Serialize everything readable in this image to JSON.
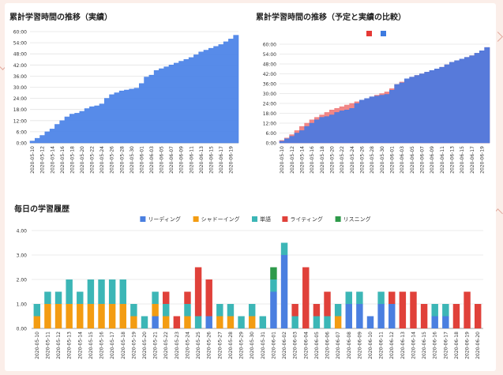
{
  "chart_data": [
    {
      "type": "area",
      "title": "累計学習時間の推移（実績）",
      "x": [
        "2020-05-10",
        "2020-05-11",
        "2020-05-12",
        "2020-05-13",
        "2020-05-14",
        "2020-05-15",
        "2020-05-16",
        "2020-05-17",
        "2020-05-18",
        "2020-05-19",
        "2020-05-20",
        "2020-05-21",
        "2020-05-22",
        "2020-05-23",
        "2020-05-24",
        "2020-05-25",
        "2020-05-26",
        "2020-05-27",
        "2020-05-28",
        "2020-05-29",
        "2020-05-30",
        "2020-05-31",
        "2020-06-01",
        "2020-06-02",
        "2020-06-03",
        "2020-06-04",
        "2020-06-05",
        "2020-06-06",
        "2020-06-07",
        "2020-06-08",
        "2020-06-09",
        "2020-06-10",
        "2020-06-11",
        "2020-06-12",
        "2020-06-13",
        "2020-06-14",
        "2020-06-15",
        "2020-06-16",
        "2020-06-17",
        "2020-06-18",
        "2020-06-19",
        "2020-06-20"
      ],
      "xticks": [
        "2020-05-10",
        "2020-05-12",
        "2020-05-14",
        "2020-05-16",
        "2020-05-18",
        "2020-05-20",
        "2020-05-22",
        "2020-05-24",
        "2020-05-26",
        "2020-05-28",
        "2020-05-30",
        "2020-06-01",
        "2020-06-03",
        "2020-06-05",
        "2020-06-07",
        "2020-06-09",
        "2020-06-11",
        "2020-06-13",
        "2020-06-15",
        "2020-06-17",
        "2020-06-19"
      ],
      "yticks": [
        "0:00",
        "6:00",
        "12:00",
        "18:00",
        "24:00",
        "30:00",
        "36:00",
        "42:00",
        "48:00",
        "54:00",
        "60:00"
      ],
      "ylim": [
        0,
        60
      ],
      "series": [
        {
          "values": [
            1,
            2.5,
            4,
            6,
            7.5,
            10,
            12,
            14,
            15.5,
            16,
            17,
            18.5,
            19.5,
            20,
            21,
            24,
            26,
            27,
            28,
            28.5,
            29,
            29.5,
            32,
            35.5,
            36.5,
            39,
            40,
            41,
            42,
            43,
            44,
            45,
            46,
            47.5,
            49,
            50,
            51,
            52,
            53,
            54.5,
            56,
            58
          ]
        }
      ],
      "colors": [
        "#4e85e8"
      ],
      "grid": true
    },
    {
      "type": "area",
      "title": "累計学習時間の推移（予定と実績の比較）",
      "x": [
        "2020-05-10",
        "2020-05-11",
        "2020-05-12",
        "2020-05-13",
        "2020-05-14",
        "2020-05-15",
        "2020-05-16",
        "2020-05-17",
        "2020-05-18",
        "2020-05-19",
        "2020-05-20",
        "2020-05-21",
        "2020-05-22",
        "2020-05-23",
        "2020-05-24",
        "2020-05-25",
        "2020-05-26",
        "2020-05-27",
        "2020-05-28",
        "2020-05-29",
        "2020-05-30",
        "2020-05-31",
        "2020-06-01",
        "2020-06-02",
        "2020-06-03",
        "2020-06-04",
        "2020-06-05",
        "2020-06-06",
        "2020-06-07",
        "2020-06-08",
        "2020-06-09",
        "2020-06-10",
        "2020-06-11",
        "2020-06-12",
        "2020-06-13",
        "2020-06-14",
        "2020-06-15",
        "2020-06-16",
        "2020-06-17",
        "2020-06-18",
        "2020-06-19",
        "2020-06-20"
      ],
      "xticks": [
        "2020-05-10",
        "2020-05-12",
        "2020-05-14",
        "2020-05-16",
        "2020-05-18",
        "2020-05-20",
        "2020-05-22",
        "2020-05-24",
        "2020-05-26",
        "2020-05-28",
        "2020-05-30",
        "2020-06-01",
        "2020-06-03",
        "2020-06-05",
        "2020-06-07",
        "2020-06-09",
        "2020-06-11",
        "2020-06-13",
        "2020-06-15",
        "2020-06-17",
        "2020-06-19"
      ],
      "yticks": [
        "0:00",
        "6:00",
        "12:00",
        "18:00",
        "24:00",
        "30:00",
        "36:00",
        "42:00",
        "48:00",
        "54:00",
        "60:00"
      ],
      "ylim": [
        0,
        60
      ],
      "legend": {
        "position": "top"
      },
      "series": [
        {
          "values": [
            1.5,
            3,
            5,
            7.5,
            10,
            12,
            14,
            15.5,
            17,
            18.5,
            20,
            21,
            22,
            23,
            24,
            25,
            26,
            27,
            28,
            29,
            30,
            31,
            33,
            35.5,
            37,
            38.5,
            40,
            41,
            42,
            43,
            44,
            45,
            46,
            47.5,
            49,
            50,
            51,
            52,
            53,
            54.5,
            56,
            58
          ]
        },
        {
          "values": [
            1,
            2.5,
            4,
            6,
            7.5,
            10,
            12,
            14,
            15.5,
            16,
            17,
            18.5,
            19.5,
            20,
            21,
            24,
            26,
            27,
            28,
            28.5,
            29,
            29.5,
            32,
            35.5,
            36.5,
            39,
            40,
            41,
            42,
            43,
            44,
            45,
            46,
            47.5,
            49,
            50,
            51,
            52,
            53,
            54.5,
            56,
            58
          ]
        }
      ],
      "colors": [
        "#f08080",
        "#4e79de"
      ],
      "legend_colors": [
        "#e53935",
        "#3d7be0"
      ],
      "grid": true
    },
    {
      "type": "bar",
      "stacked": true,
      "title": "毎日の学習履歴",
      "categories": [
        "2020-05-10",
        "2020-05-11",
        "2020-05-12",
        "2020-05-13",
        "2020-05-14",
        "2020-05-15",
        "2020-05-16",
        "2020-05-17",
        "2020-05-18",
        "2020-05-19",
        "2020-05-20",
        "2020-05-21",
        "2020-05-22",
        "2020-05-23",
        "2020-05-24",
        "2020-05-25",
        "2020-05-26",
        "2020-05-27",
        "2020-05-28",
        "2020-05-29",
        "2020-05-30",
        "2020-05-31",
        "2020-06-01",
        "2020-06-02",
        "2020-06-03",
        "2020-06-04",
        "2020-06-05",
        "2020-06-06",
        "2020-06-07",
        "2020-06-08",
        "2020-06-09",
        "2020-06-10",
        "2020-06-11",
        "2020-06-12",
        "2020-06-13",
        "2020-06-14",
        "2020-06-15",
        "2020-06-16",
        "2020-06-17",
        "2020-06-18",
        "2020-06-19",
        "2020-06-20"
      ],
      "yticks": [
        "0.00",
        "1.00",
        "2.00",
        "3.00",
        "4.00"
      ],
      "ylim": [
        0,
        4
      ],
      "legend": {
        "position": "top"
      },
      "series": [
        {
          "name": "リーディング",
          "color": "#4a7fe0",
          "values": [
            0,
            0,
            0,
            0,
            0,
            0,
            0,
            0,
            0,
            0,
            0,
            0.5,
            0,
            0,
            0,
            0,
            0.5,
            0,
            0,
            0,
            0,
            0,
            1.5,
            3.0,
            0,
            0,
            0,
            0,
            0,
            1.0,
            1.0,
            0.5,
            1.0,
            1.0,
            0,
            0,
            0,
            0.5,
            0.5,
            0,
            0,
            0
          ]
        },
        {
          "name": "シャドーイング",
          "color": "#f39c12",
          "values": [
            0.5,
            1.0,
            1.0,
            1.0,
            1.0,
            1.0,
            1.0,
            1.0,
            1.0,
            0.5,
            0,
            0.5,
            0.5,
            0,
            0.5,
            0,
            0,
            0.5,
            0.5,
            0,
            0.5,
            0,
            0,
            0,
            0,
            0,
            0,
            0,
            0.5,
            0,
            0,
            0,
            0,
            0,
            0,
            0,
            0,
            0,
            0,
            0,
            0,
            0
          ]
        },
        {
          "name": "単語",
          "color": "#3cb6b6",
          "values": [
            0.5,
            0.5,
            0.5,
            1.0,
            0.5,
            1.0,
            1.0,
            1.0,
            1.0,
            0.5,
            0.5,
            0.5,
            0.5,
            0,
            0.5,
            0.5,
            0,
            0.5,
            0.5,
            0.5,
            0.5,
            0.5,
            0.5,
            0.5,
            0.5,
            0,
            0.5,
            0.5,
            0.5,
            0.5,
            0.5,
            0,
            0.5,
            0,
            0,
            0,
            0,
            0.5,
            0.5,
            0,
            0,
            0
          ]
        },
        {
          "name": "ライティング",
          "color": "#e0413a",
          "values": [
            0,
            0,
            0,
            0,
            0,
            0,
            0,
            0,
            0,
            0,
            0,
            0,
            0.5,
            0.5,
            0.5,
            2.0,
            1.5,
            0,
            0,
            0,
            0,
            0,
            0,
            0,
            0.5,
            2.5,
            0.5,
            1.0,
            0,
            0,
            0,
            0,
            0,
            0.5,
            1.5,
            1.5,
            1.0,
            0,
            0,
            1.0,
            1.5,
            1.0
          ]
        },
        {
          "name": "リスニング",
          "color": "#2e9a4a",
          "values": [
            0,
            0,
            0,
            0,
            0,
            0,
            0,
            0,
            0,
            0,
            0,
            0,
            0,
            0,
            0,
            0,
            0,
            0,
            0,
            0,
            0,
            0,
            0.5,
            0,
            0,
            0,
            0,
            0,
            0,
            0,
            0,
            0,
            0,
            0,
            0,
            0,
            0,
            0,
            0,
            0,
            0,
            0
          ]
        }
      ],
      "grid": true
    }
  ]
}
